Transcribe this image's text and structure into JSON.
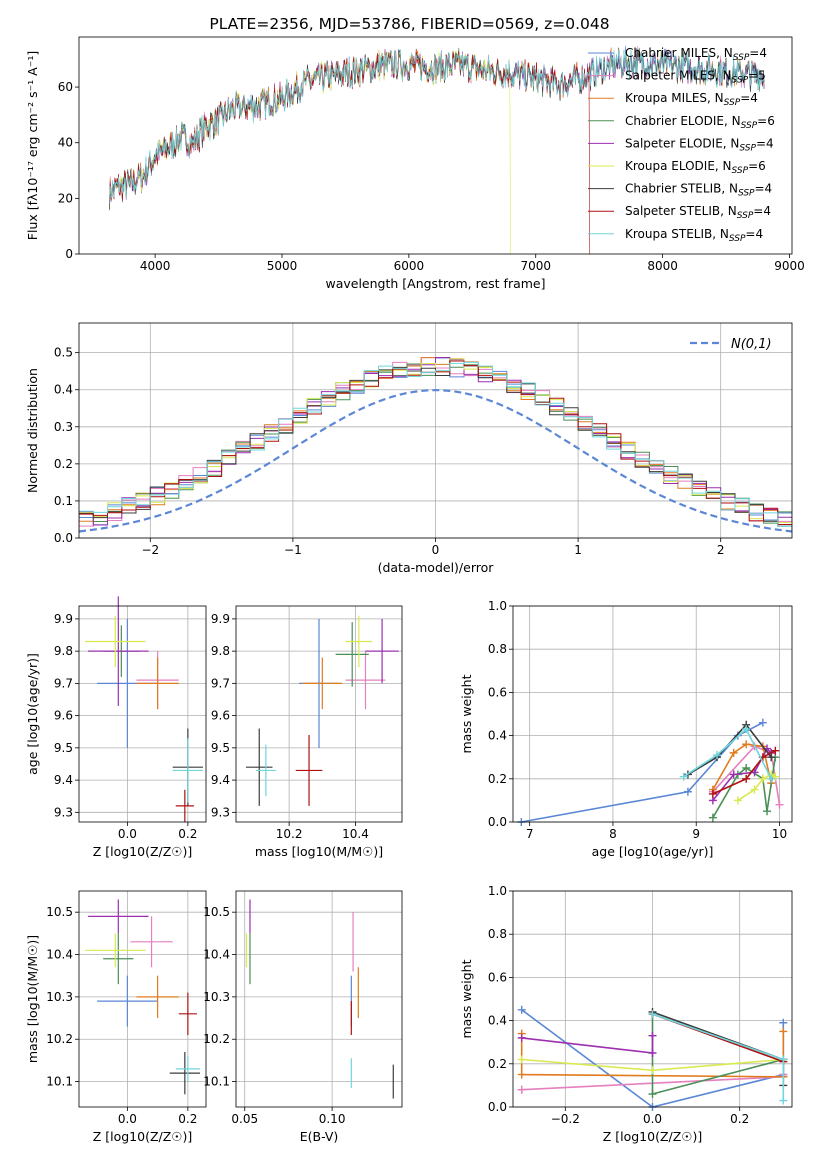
{
  "figure_title": "PLATE=2356, MJD=53786, FIBERID=0569, z=0.048",
  "legend_entries": [
    {
      "base": "Chabrier MILES, N",
      "sub": "SSP",
      "val": "=4",
      "color": "#5b87d6"
    },
    {
      "base": "Salpeter MILES, N",
      "sub": "SSP",
      "val": "=5",
      "color": "#e57fbf"
    },
    {
      "base": "Kroupa MILES, N",
      "sub": "SSP",
      "val": "=4",
      "color": "#e07b1e"
    },
    {
      "base": "Chabrier ELODIE, N",
      "sub": "SSP",
      "val": "=6",
      "color": "#4a8f56"
    },
    {
      "base": "Salpeter ELODIE, N",
      "sub": "SSP",
      "val": "=4",
      "color": "#9b2fb0"
    },
    {
      "base": "Kroupa ELODIE, N",
      "sub": "SSP",
      "val": "=6",
      "color": "#d8ea50"
    },
    {
      "base": "Chabrier STELIB, N",
      "sub": "SSP",
      "val": "=4",
      "color": "#3c3c3c"
    },
    {
      "base": "Salpeter STELIB, N",
      "sub": "SSP",
      "val": "=4",
      "color": "#b01010"
    },
    {
      "base": "Kroupa STELIB, N",
      "sub": "SSP",
      "val": "=4",
      "color": "#6fd6dc"
    }
  ],
  "chart_data": [
    {
      "id": "spectrum",
      "type": "line",
      "title": "PLATE=2356, MJD=53786, FIBERID=0569, z=0.048",
      "xlabel": "wavelength [Angstrom, rest frame]",
      "ylabel": "Flux [fλ10⁻¹⁷ erg cm⁻² s⁻¹ A⁻¹]",
      "xlim": [
        3400,
        9020
      ],
      "ylim": [
        0,
        78
      ],
      "xticks": [
        4000,
        5000,
        6000,
        7000,
        8000,
        9000
      ],
      "yticks": [
        0,
        20,
        40,
        60
      ],
      "x": [
        3640,
        3700,
        3800,
        3900,
        4000,
        4100,
        4200,
        4300,
        4400,
        4500,
        4600,
        4700,
        4800,
        4900,
        5000,
        5200,
        5400,
        5600,
        5800,
        6000,
        6200,
        6400,
        6600,
        6800,
        7000,
        7200,
        7400,
        7600,
        7800,
        8000,
        8200,
        8400,
        8600,
        8800
      ],
      "y": [
        22,
        24,
        25,
        28,
        35,
        38,
        42,
        40,
        46,
        48,
        52,
        53,
        53,
        55,
        56,
        62,
        64,
        66,
        68,
        68,
        67,
        68,
        66,
        65,
        63,
        61,
        64,
        68,
        69,
        68,
        67,
        66,
        65,
        64
      ],
      "cutoffs": [
        {
          "series": "Kroupa ELODIE",
          "x": 6800
        },
        {
          "series": "Salpeter STELIB",
          "x": 7420
        }
      ]
    },
    {
      "id": "residuals",
      "type": "histogram",
      "xlabel": "(data-model)/error",
      "ylabel": "Normed distribution",
      "xlim": [
        -2.5,
        2.5
      ],
      "ylim": [
        0,
        0.58
      ],
      "xticks": [
        -2,
        -1,
        0,
        1,
        2
      ],
      "yticks": [
        0.0,
        0.1,
        0.2,
        0.3,
        0.4,
        0.5
      ],
      "bin_width": 0.1,
      "reference_curve": "N(0,1)",
      "legend": "top-right"
    },
    {
      "id": "age-vs-Z",
      "type": "errorbar",
      "xlabel": "Z [log10(Z/Z☉)]",
      "ylabel": "age  [log10(age/yr)]",
      "xlim": [
        -0.16,
        0.26
      ],
      "ylim": [
        9.27,
        9.94
      ],
      "xticks": [
        0.0,
        0.2
      ],
      "yticks": [
        9.3,
        9.4,
        9.5,
        9.6,
        9.7,
        9.8,
        9.9
      ],
      "points": [
        {
          "series": "Chabrier MILES",
          "x": 0.0,
          "xerr": 0.1,
          "y": 9.7,
          "yerr": 0.2
        },
        {
          "series": "Salpeter MILES",
          "x": 0.1,
          "xerr": 0.07,
          "y": 9.71,
          "yerr": 0.09
        },
        {
          "series": "Kroupa MILES",
          "x": 0.1,
          "xerr": 0.07,
          "y": 9.7,
          "yerr": 0.08
        },
        {
          "series": "Chabrier ELODIE",
          "x": -0.02,
          "xerr": 0.06,
          "y": 9.8,
          "yerr": 0.08
        },
        {
          "series": "Salpeter ELODIE",
          "x": -0.03,
          "xerr": 0.1,
          "y": 9.8,
          "yerr": 0.17
        },
        {
          "series": "Kroupa ELODIE",
          "x": -0.04,
          "xerr": 0.1,
          "y": 9.83,
          "yerr": 0.08
        },
        {
          "series": "Chabrier STELIB",
          "x": 0.2,
          "xerr": 0.05,
          "y": 9.44,
          "yerr": 0.12
        },
        {
          "series": "Salpeter STELIB",
          "x": 0.19,
          "xerr": 0.03,
          "y": 9.32,
          "yerr": 0.05
        },
        {
          "series": "Kroupa STELIB",
          "x": 0.2,
          "xerr": 0.05,
          "y": 9.43,
          "yerr": 0.1
        }
      ]
    },
    {
      "id": "age-vs-mass",
      "type": "errorbar",
      "xlabel": "mass [log10(M/M☉)]",
      "ylabel": "",
      "xlim": [
        10.04,
        10.54
      ],
      "ylim": [
        9.27,
        9.94
      ],
      "xticks": [
        10.2,
        10.4
      ],
      "yticks": [
        9.3,
        9.4,
        9.5,
        9.6,
        9.7,
        9.8,
        9.9
      ],
      "points": [
        {
          "series": "Chabrier MILES",
          "x": 10.29,
          "xerr": 0.06,
          "y": 9.7,
          "yerr": 0.2
        },
        {
          "series": "Salpeter MILES",
          "x": 10.43,
          "xerr": 0.06,
          "y": 9.71,
          "yerr": 0.09
        },
        {
          "series": "Kroupa MILES",
          "x": 10.3,
          "xerr": 0.06,
          "y": 9.7,
          "yerr": 0.08
        },
        {
          "series": "Chabrier ELODIE",
          "x": 10.39,
          "xerr": 0.05,
          "y": 9.79,
          "yerr": 0.1
        },
        {
          "series": "Salpeter ELODIE",
          "x": 10.48,
          "xerr": 0.05,
          "y": 9.8,
          "yerr": 0.1
        },
        {
          "series": "Kroupa ELODIE",
          "x": 10.41,
          "xerr": 0.04,
          "y": 9.83,
          "yerr": 0.08
        },
        {
          "series": "Chabrier STELIB",
          "x": 10.11,
          "xerr": 0.04,
          "y": 9.44,
          "yerr": 0.12
        },
        {
          "series": "Salpeter STELIB",
          "x": 10.26,
          "xerr": 0.04,
          "y": 9.43,
          "yerr": 0.11
        },
        {
          "series": "Kroupa STELIB",
          "x": 10.13,
          "xerr": 0.03,
          "y": 9.43,
          "yerr": 0.08
        }
      ]
    },
    {
      "id": "mass-weight-vs-age",
      "type": "line",
      "xlabel": "age  [log10(age/yr)]",
      "ylabel": "mass weight",
      "xlim": [
        6.8,
        10.15
      ],
      "ylim": [
        0,
        1.0
      ],
      "xticks": [
        7,
        8,
        9,
        10
      ],
      "yticks": [
        0.0,
        0.2,
        0.4,
        0.6,
        0.8,
        1.0
      ],
      "series": [
        {
          "name": "Chabrier MILES",
          "x": [
            6.9,
            8.9,
            9.5,
            9.8
          ],
          "y": [
            0.0,
            0.14,
            0.4,
            0.46
          ]
        },
        {
          "name": "Salpeter MILES",
          "x": [
            9.2,
            9.7,
            9.9,
            10.0
          ],
          "y": [
            0.14,
            0.35,
            0.32,
            0.08
          ]
        },
        {
          "name": "Kroupa MILES",
          "x": [
            9.2,
            9.45,
            9.6,
            9.8,
            9.9
          ],
          "y": [
            0.15,
            0.32,
            0.36,
            0.35,
            0.18
          ]
        },
        {
          "name": "Chabrier ELODIE",
          "x": [
            9.2,
            9.5,
            9.6,
            9.8,
            9.85,
            9.95
          ],
          "y": [
            0.02,
            0.22,
            0.25,
            0.2,
            0.05,
            0.3
          ]
        },
        {
          "name": "Salpeter ELODIE",
          "x": [
            9.2,
            9.45,
            9.7,
            9.85,
            9.9
          ],
          "y": [
            0.1,
            0.22,
            0.23,
            0.34,
            0.32
          ]
        },
        {
          "name": "Kroupa ELODIE",
          "x": [
            9.5,
            9.7,
            9.8,
            9.9,
            9.95
          ],
          "y": [
            0.1,
            0.15,
            0.2,
            0.22,
            0.21
          ]
        },
        {
          "name": "Chabrier STELIB",
          "x": [
            8.9,
            9.25,
            9.6,
            9.9
          ],
          "y": [
            0.22,
            0.3,
            0.45,
            0.3
          ]
        },
        {
          "name": "Salpeter STELIB",
          "x": [
            9.2,
            9.6,
            9.8,
            9.95
          ],
          "y": [
            0.13,
            0.2,
            0.3,
            0.33
          ]
        },
        {
          "name": "Kroupa STELIB",
          "x": [
            8.85,
            9.25,
            9.6,
            9.9
          ],
          "y": [
            0.21,
            0.31,
            0.43,
            0.2
          ]
        }
      ]
    },
    {
      "id": "mass-vs-Z",
      "type": "errorbar",
      "xlabel": "Z [log10(Z/Z☉)]",
      "ylabel": "mass [log10(M/M☉)]",
      "xlim": [
        -0.16,
        0.26
      ],
      "ylim": [
        10.04,
        10.55
      ],
      "xticks": [
        0.0,
        0.2
      ],
      "yticks": [
        10.1,
        10.2,
        10.3,
        10.4,
        10.5
      ],
      "points": [
        {
          "series": "Chabrier MILES",
          "x": 0.0,
          "xerr": 0.1,
          "y": 10.29,
          "yerr": 0.06
        },
        {
          "series": "Salpeter MILES",
          "x": 0.08,
          "xerr": 0.07,
          "y": 10.43,
          "yerr": 0.06
        },
        {
          "series": "Kroupa MILES",
          "x": 0.1,
          "xerr": 0.07,
          "y": 10.3,
          "yerr": 0.05
        },
        {
          "series": "Chabrier ELODIE",
          "x": -0.03,
          "xerr": 0.05,
          "y": 10.39,
          "yerr": 0.06
        },
        {
          "series": "Salpeter ELODIE",
          "x": -0.03,
          "xerr": 0.1,
          "y": 10.49,
          "yerr": 0.04
        },
        {
          "series": "Kroupa ELODIE",
          "x": -0.04,
          "xerr": 0.1,
          "y": 10.41,
          "yerr": 0.04
        },
        {
          "series": "Chabrier STELIB",
          "x": 0.19,
          "xerr": 0.05,
          "y": 10.12,
          "yerr": 0.05
        },
        {
          "series": "Salpeter STELIB",
          "x": 0.2,
          "xerr": 0.03,
          "y": 10.26,
          "yerr": 0.05
        },
        {
          "series": "Kroupa STELIB",
          "x": 0.2,
          "xerr": 0.04,
          "y": 10.13,
          "yerr": 0.03
        }
      ]
    },
    {
      "id": "mass-vs-EBV",
      "type": "errorbar",
      "xlabel": "E(B-V)",
      "ylabel": "",
      "xlim": [
        0.045,
        0.14
      ],
      "ylim": [
        10.04,
        10.55
      ],
      "xticks": [
        0.05,
        0.1
      ],
      "yticks": [
        10.1,
        10.2,
        10.3,
        10.4,
        10.5
      ],
      "points": [
        {
          "series": "Chabrier MILES",
          "x": 0.111,
          "y": 10.29,
          "yerr": 0.06
        },
        {
          "series": "Salpeter MILES",
          "x": 0.112,
          "y": 10.43,
          "yerr": 0.07
        },
        {
          "series": "Kroupa MILES",
          "x": 0.115,
          "y": 10.31,
          "yerr": 0.06
        },
        {
          "series": "Chabrier ELODIE",
          "x": 0.053,
          "y": 10.39,
          "yerr": 0.06
        },
        {
          "series": "Salpeter ELODIE",
          "x": 0.053,
          "y": 10.49,
          "yerr": 0.04
        },
        {
          "series": "Kroupa ELODIE",
          "x": 0.051,
          "y": 10.41,
          "yerr": 0.04
        },
        {
          "series": "Chabrier STELIB",
          "x": 0.135,
          "y": 10.1,
          "yerr": 0.04
        },
        {
          "series": "Salpeter STELIB",
          "x": 0.111,
          "y": 10.25,
          "yerr": 0.04
        },
        {
          "series": "Kroupa STELIB",
          "x": 0.111,
          "y": 10.12,
          "yerr": 0.035
        }
      ]
    },
    {
      "id": "mass-weight-vs-Z",
      "type": "line",
      "xlabel": "Z [log10(Z/Z☉)]",
      "ylabel": "mass weight",
      "xlim": [
        -0.32,
        0.32
      ],
      "ylim": [
        0,
        1.0
      ],
      "xticks": [
        -0.2,
        0.0,
        0.2
      ],
      "yticks": [
        0.0,
        0.2,
        0.4,
        0.6,
        0.8,
        1.0
      ],
      "series": [
        {
          "name": "Chabrier MILES",
          "x": [
            -0.3,
            0.0,
            0.3,
            0.3
          ],
          "y": [
            0.45,
            0.0,
            0.15,
            0.39
          ]
        },
        {
          "name": "Salpeter MILES",
          "x": [
            -0.3,
            -0.3,
            0.3,
            0.3
          ],
          "y": [
            0.08,
            0.08,
            0.14,
            0.15
          ]
        },
        {
          "name": "Kroupa MILES",
          "x": [
            -0.3,
            -0.3,
            0.3,
            0.3
          ],
          "y": [
            0.34,
            0.15,
            0.14,
            0.35
          ]
        },
        {
          "name": "Chabrier ELODIE",
          "x": [
            0.0,
            0.0,
            0.3
          ],
          "y": [
            0.43,
            0.06,
            0.22
          ]
        },
        {
          "name": "Salpeter ELODIE",
          "x": [
            -0.3,
            0.0,
            0.0
          ],
          "y": [
            0.32,
            0.25,
            0.33
          ]
        },
        {
          "name": "Kroupa ELODIE",
          "x": [
            -0.3,
            0.0,
            0.3
          ],
          "y": [
            0.22,
            0.17,
            0.22
          ]
        },
        {
          "name": "Chabrier STELIB",
          "x": [
            0.0,
            0.3,
            0.3
          ],
          "y": [
            0.44,
            0.22,
            0.1
          ]
        },
        {
          "name": "Salpeter STELIB",
          "x": [
            0.0,
            0.3
          ],
          "y": [
            0.43,
            0.21
          ]
        },
        {
          "name": "Kroupa STELIB",
          "x": [
            0.0,
            0.3,
            0.3
          ],
          "y": [
            0.43,
            0.22,
            0.03
          ]
        }
      ]
    }
  ]
}
